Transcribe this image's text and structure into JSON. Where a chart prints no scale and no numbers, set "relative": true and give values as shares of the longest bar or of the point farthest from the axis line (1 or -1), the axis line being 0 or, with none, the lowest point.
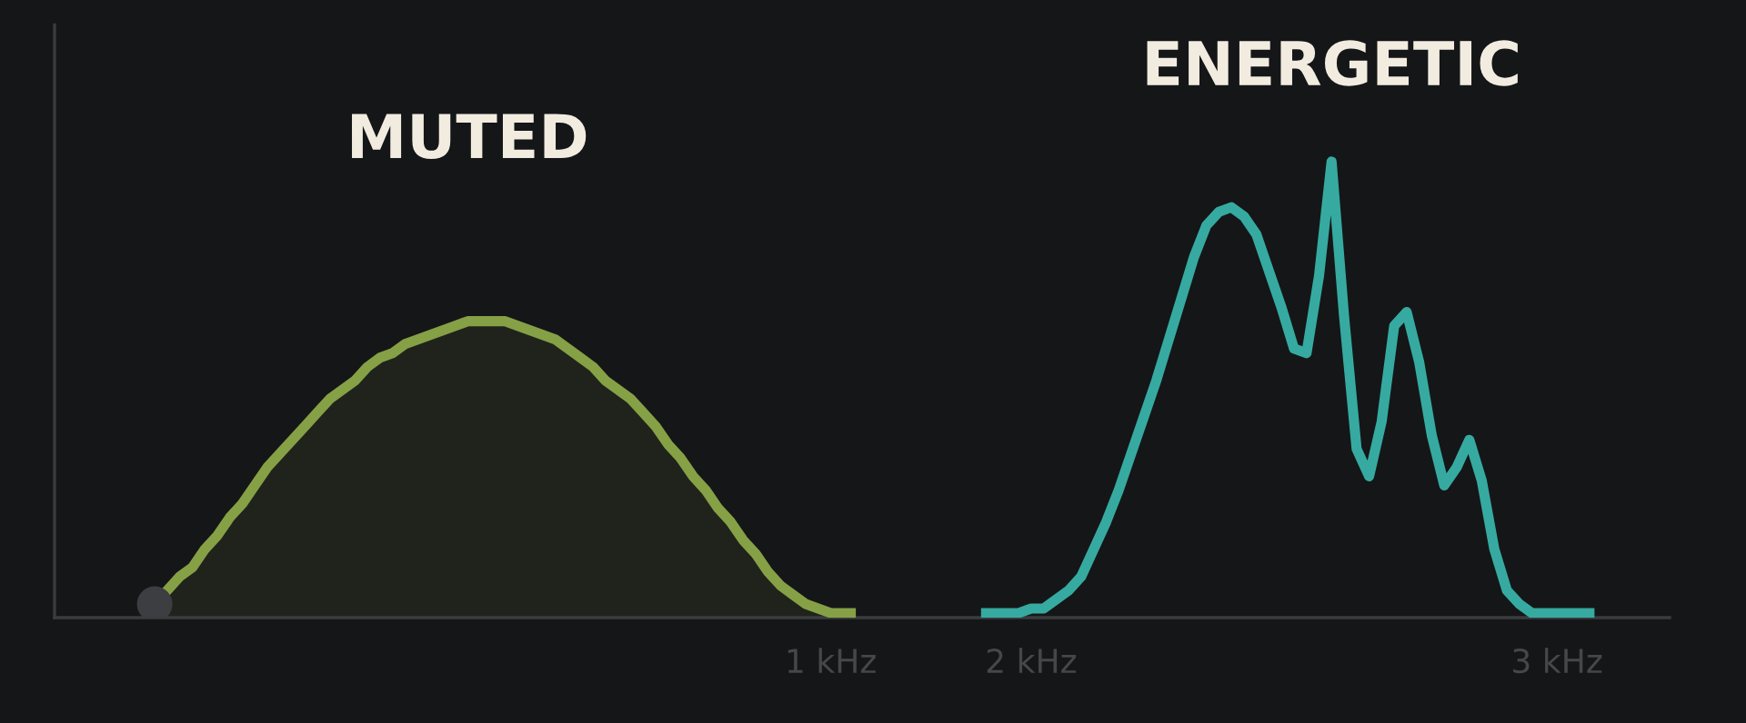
{
  "chart_data": {
    "type": "line",
    "relative": true,
    "grid": false,
    "legend": false,
    "categories": [
      null,
      null,
      null,
      null,
      null,
      null,
      null,
      null,
      null,
      null,
      null,
      null,
      null,
      null,
      null,
      null,
      null,
      null,
      null,
      null,
      null,
      null,
      null,
      null,
      null,
      null,
      null,
      null,
      null,
      null,
      null,
      null,
      null,
      null,
      null,
      null,
      null,
      null,
      null,
      null,
      null,
      null,
      null,
      null,
      null,
      null,
      null,
      null,
      null,
      null,
      null,
      null,
      null,
      null,
      null,
      null,
      null,
      null,
      null,
      null,
      null,
      null,
      "1 kHz",
      null,
      null,
      null,
      null,
      null,
      null,
      null,
      null,
      null,
      null,
      null,
      null,
      null,
      null,
      null,
      "2 kHz",
      null,
      null,
      null,
      null,
      null,
      null,
      null,
      null,
      null,
      null,
      null,
      null,
      null,
      null,
      null,
      null,
      null,
      null,
      null,
      null,
      null,
      null,
      null,
      null,
      null,
      null,
      null,
      null,
      null,
      null,
      null,
      null,
      null,
      null,
      null,
      null,
      null,
      null,
      null,
      null,
      null,
      "3 kHz",
      null,
      null,
      null,
      null,
      null,
      null,
      null,
      null
    ],
    "series": [
      {
        "name": "MUTED",
        "type": "area",
        "color": "#86a046",
        "values": [
          null,
          null,
          null,
          null,
          null,
          null,
          null,
          null,
          0.03,
          0.06,
          0.09,
          0.11,
          0.15,
          0.18,
          0.22,
          0.25,
          0.29,
          0.33,
          0.36,
          0.39,
          0.42,
          0.45,
          0.48,
          0.5,
          0.52,
          0.55,
          0.57,
          0.58,
          0.6,
          0.61,
          0.62,
          0.63,
          0.64,
          0.65,
          0.65,
          0.65,
          0.65,
          0.64,
          0.63,
          0.62,
          0.61,
          0.59,
          0.57,
          0.55,
          0.52,
          0.5,
          0.48,
          0.45,
          0.42,
          0.38,
          0.35,
          0.31,
          0.28,
          0.24,
          0.21,
          0.17,
          0.14,
          0.1,
          0.07,
          0.05,
          0.03,
          0.02,
          0.01,
          0.01,
          0.01,
          null,
          null,
          null,
          null,
          null,
          null,
          null,
          null,
          null,
          null,
          null,
          null,
          null,
          null,
          null,
          null,
          null,
          null,
          null,
          null,
          null,
          null,
          null,
          null,
          null,
          null,
          null,
          null,
          null,
          null,
          null,
          null,
          null,
          null,
          null,
          null,
          null,
          null,
          null,
          null,
          null,
          null,
          null,
          null,
          null,
          null,
          null,
          null,
          null,
          null,
          null,
          null,
          null,
          null,
          null,
          null,
          null,
          null,
          null,
          null,
          null,
          null,
          null,
          null
        ]
      },
      {
        "name": "ENERGETIC",
        "color": "#36aaa0",
        "values": [
          null,
          null,
          null,
          null,
          null,
          null,
          null,
          null,
          null,
          null,
          null,
          null,
          null,
          null,
          null,
          null,
          null,
          null,
          null,
          null,
          null,
          null,
          null,
          null,
          null,
          null,
          null,
          null,
          null,
          null,
          null,
          null,
          null,
          null,
          null,
          null,
          null,
          null,
          null,
          null,
          null,
          null,
          null,
          null,
          null,
          null,
          null,
          null,
          null,
          null,
          null,
          null,
          null,
          null,
          null,
          null,
          null,
          null,
          null,
          null,
          null,
          null,
          null,
          null,
          null,
          null,
          null,
          null,
          null,
          null,
          null,
          null,
          null,
          null,
          0.01,
          0.01,
          0.01,
          0.01,
          0.02,
          0.02,
          0.04,
          0.06,
          0.09,
          0.15,
          0.21,
          0.28,
          0.36,
          0.44,
          0.52,
          0.61,
          0.7,
          0.79,
          0.86,
          0.89,
          0.9,
          0.88,
          0.84,
          0.76,
          0.68,
          0.59,
          0.58,
          0.75,
          1,
          0.66,
          0.37,
          0.31,
          0.43,
          0.64,
          0.67,
          0.56,
          0.4,
          0.29,
          0.33,
          0.39,
          0.3,
          0.15,
          0.06,
          0.03,
          0.01,
          0.01,
          0.01,
          0.01,
          0.01,
          0.01,
          null,
          null,
          null,
          null,
          null
        ]
      }
    ]
  }
}
